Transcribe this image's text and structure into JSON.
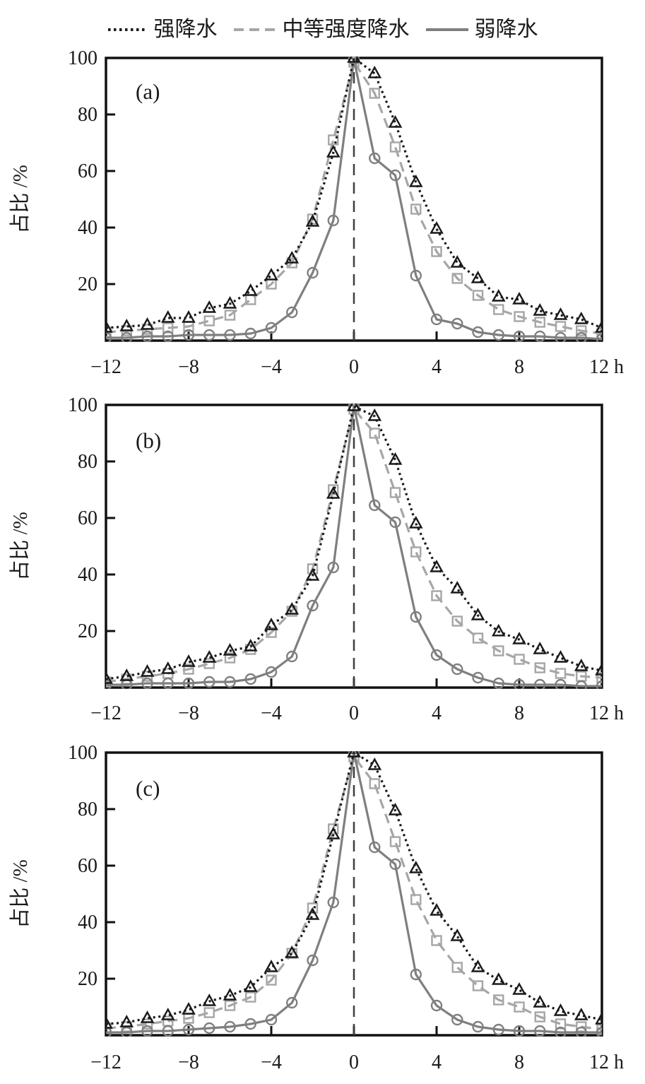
{
  "page": {
    "background": "#ffffff"
  },
  "legend": {
    "items": [
      {
        "label": "强降水",
        "line_style": "dotted",
        "color": "#1a1a1a"
      },
      {
        "label": "中等强度降水",
        "line_style": "dashed",
        "color": "#a6a6a6"
      },
      {
        "label": "弱降水",
        "line_style": "solid",
        "color": "#7f7f7f"
      }
    ]
  },
  "chart_data": [
    {
      "type": "line",
      "panel_label": "(a)",
      "title": "",
      "ylabel": "占比 /%",
      "xlabel": "h",
      "xlim": [
        -12,
        12
      ],
      "ylim": [
        0,
        100
      ],
      "grid": false,
      "legend_position": "top-center",
      "xticks": [
        -12,
        -8,
        -4,
        0,
        4,
        8,
        12
      ],
      "xtick_labels": [
        "−12",
        "−8",
        "−4",
        "0",
        "4",
        "8",
        "12 h"
      ],
      "yticks": [
        20,
        40,
        60,
        80,
        100
      ],
      "ytick_labels": [
        "20",
        "40",
        "60",
        "80",
        "100"
      ],
      "zero_line": true,
      "x": [
        -12,
        -11,
        -10,
        -9,
        -8,
        -7,
        -6,
        -5,
        -4,
        -3,
        -2,
        -1,
        0,
        1,
        2,
        3,
        4,
        5,
        6,
        7,
        8,
        9,
        10,
        11,
        12
      ],
      "series": [
        {
          "name": "强降水",
          "marker": "triangle",
          "color": "#1a1a1a",
          "dash": "3 4.5",
          "values": [
            4.5,
            5,
            5.5,
            8,
            8,
            11.5,
            13,
            17.5,
            23,
            29,
            42,
            66.5,
            100,
            94.5,
            77,
            56,
            39.5,
            27.5,
            22,
            15.5,
            14.5,
            10.5,
            9,
            7.5,
            4.5
          ]
        },
        {
          "name": "中等强度降水",
          "marker": "square",
          "color": "#a6a6a6",
          "dash": "14 8",
          "values": [
            3,
            3.5,
            4,
            4.5,
            5,
            7,
            9,
            14.5,
            20,
            27.5,
            43,
            71,
            98.5,
            87.5,
            68.5,
            46.5,
            31.5,
            22,
            16,
            11,
            8.5,
            6.5,
            5,
            3.5,
            2.5
          ]
        },
        {
          "name": "弱降水",
          "marker": "circle",
          "color": "#7f7f7f",
          "dash": "",
          "values": [
            1,
            1,
            1.5,
            1.5,
            2,
            2,
            2,
            2.5,
            4.5,
            10,
            24,
            42.5,
            99.5,
            64.5,
            58.5,
            23,
            7.5,
            6,
            3,
            2,
            1.5,
            1.5,
            1,
            1,
            0.5
          ]
        }
      ]
    },
    {
      "type": "line",
      "panel_label": "(b)",
      "title": "",
      "ylabel": "占比 /%",
      "xlabel": "h",
      "xlim": [
        -12,
        12
      ],
      "ylim": [
        0,
        100
      ],
      "grid": false,
      "legend_position": "top-center",
      "xticks": [
        -12,
        -8,
        -4,
        0,
        4,
        8,
        12
      ],
      "xtick_labels": [
        "−12",
        "−8",
        "−4",
        "0",
        "4",
        "8",
        "12 h"
      ],
      "yticks": [
        20,
        40,
        60,
        80,
        100
      ],
      "ytick_labels": [
        "20",
        "40",
        "60",
        "80",
        "100"
      ],
      "zero_line": true,
      "x": [
        -12,
        -11,
        -10,
        -9,
        -8,
        -7,
        -6,
        -5,
        -4,
        -3,
        -2,
        -1,
        0,
        1,
        2,
        3,
        4,
        5,
        6,
        7,
        8,
        9,
        10,
        11,
        12
      ],
      "series": [
        {
          "name": "强降水",
          "marker": "triangle",
          "color": "#1a1a1a",
          "dash": "3 4.5",
          "values": [
            3,
            4,
            5.5,
            6.5,
            9,
            10.5,
            13,
            14.5,
            22,
            27.5,
            39.5,
            68.5,
            99.5,
            96,
            80.5,
            58,
            42.5,
            35,
            25.5,
            19.8,
            17,
            13.5,
            10.5,
            7.5,
            6
          ]
        },
        {
          "name": "中等强度降水",
          "marker": "square",
          "color": "#a6a6a6",
          "dash": "14 8",
          "values": [
            2,
            3,
            4,
            5,
            6.5,
            8.5,
            10.5,
            13.5,
            19.5,
            27,
            42,
            70,
            98.5,
            90,
            69,
            48,
            32.5,
            23.5,
            17.5,
            13,
            10,
            7,
            5,
            4,
            3.5
          ]
        },
        {
          "name": "弱降水",
          "marker": "circle",
          "color": "#7f7f7f",
          "dash": "",
          "values": [
            1,
            1,
            1.5,
            1.5,
            1.5,
            2,
            2,
            3,
            5.5,
            11,
            29,
            42.5,
            99.5,
            64.5,
            58.5,
            25,
            11.5,
            6.5,
            3.5,
            1.5,
            1,
            1,
            1,
            0.5,
            0.5
          ]
        }
      ]
    },
    {
      "type": "line",
      "panel_label": "(c)",
      "title": "",
      "ylabel": "占比 /%",
      "xlabel": "h",
      "xlim": [
        -12,
        12
      ],
      "ylim": [
        0,
        100
      ],
      "grid": false,
      "legend_position": "top-center",
      "xticks": [
        -12,
        -8,
        -4,
        0,
        4,
        8,
        12
      ],
      "xtick_labels": [
        "−12",
        "−8",
        "−4",
        "0",
        "4",
        "8",
        "12 h"
      ],
      "yticks": [
        20,
        40,
        60,
        80,
        100
      ],
      "ytick_labels": [
        "20",
        "40",
        "60",
        "80",
        "100"
      ],
      "zero_line": true,
      "x": [
        -12,
        -11,
        -10,
        -9,
        -8,
        -7,
        -6,
        -5,
        -4,
        -3,
        -2,
        -1,
        0,
        1,
        2,
        3,
        4,
        5,
        6,
        7,
        8,
        9,
        10,
        11,
        12
      ],
      "series": [
        {
          "name": "强降水",
          "marker": "triangle",
          "color": "#1a1a1a",
          "dash": "3 4.5",
          "values": [
            4,
            4.5,
            6,
            7,
            9,
            12,
            14,
            17,
            24,
            29,
            42.5,
            71,
            100,
            95.5,
            79.5,
            59,
            44,
            35,
            24,
            19.5,
            16,
            11.5,
            8.5,
            7,
            5.5
          ]
        },
        {
          "name": "中等强度降水",
          "marker": "square",
          "color": "#a6a6a6",
          "dash": "14 8",
          "values": [
            2.5,
            3,
            4,
            5,
            6,
            8,
            10.5,
            13.5,
            19.5,
            29,
            45,
            73,
            98.5,
            89,
            68.5,
            48,
            33.5,
            24,
            17.5,
            12.5,
            10,
            6.5,
            4,
            3,
            2
          ]
        },
        {
          "name": "弱降水",
          "marker": "circle",
          "color": "#7f7f7f",
          "dash": "",
          "values": [
            1,
            1,
            1.5,
            1.5,
            2,
            2.5,
            3,
            4,
            5.5,
            11.5,
            26.5,
            47,
            100,
            66.5,
            60.5,
            21.5,
            10.5,
            5.5,
            3,
            2,
            1.5,
            1.5,
            1,
            1,
            1
          ]
        }
      ]
    }
  ],
  "style": {
    "frame_color": "#111111",
    "zero_line_color": "#3f3f3f",
    "tick_label_color": "#1a1a1a"
  }
}
